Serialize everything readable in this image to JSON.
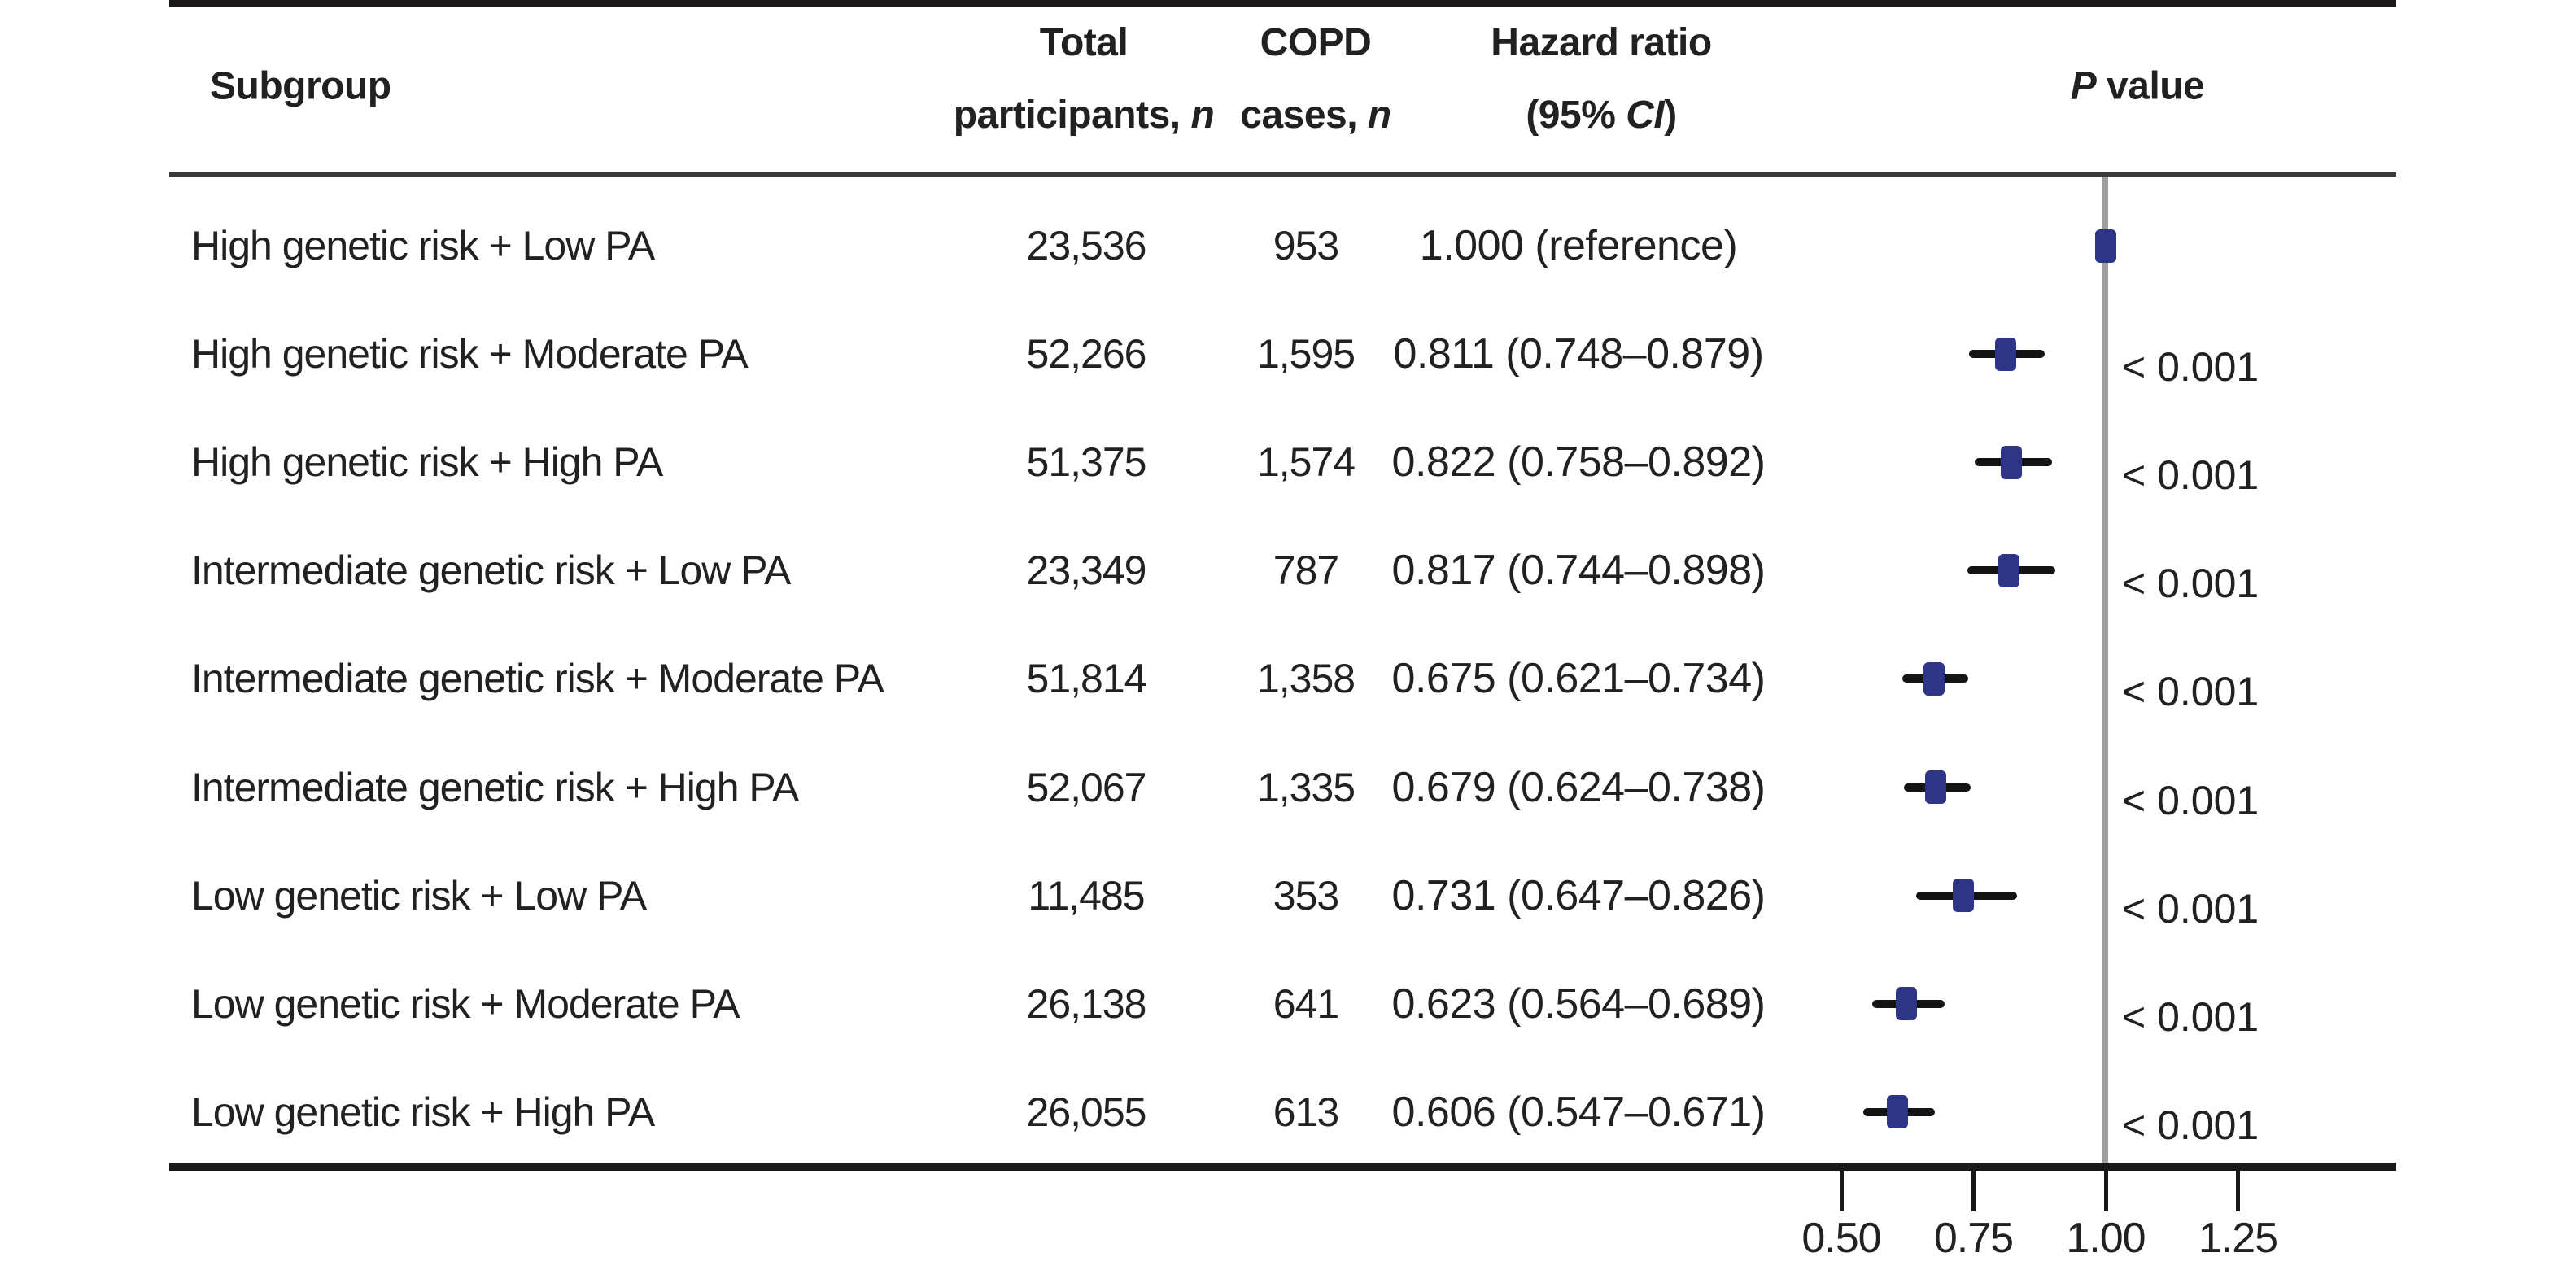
{
  "chart_data": {
    "type": "forest",
    "header": {
      "subgroup": "Subgroup",
      "total_line1": "Total",
      "total_line2_text": "participants, ",
      "total_line2_italic": "n",
      "copd_line1": "COPD",
      "copd_line2_text": "cases, ",
      "copd_line2_italic": "n",
      "hr_line1": "Hazard ratio",
      "hr_line2_pre": "(95% ",
      "hr_line2_italic": "CI",
      "hr_line2_post": ")",
      "p_italic": "P",
      "p_rest": " value"
    },
    "rows": [
      {
        "subgroup": "High genetic risk + Low PA",
        "total_participants": "23,536",
        "copd_cases": "953",
        "hr_text": "1.000 (reference)",
        "hr": 1.0,
        "ci_low": null,
        "ci_high": null,
        "p_value": ""
      },
      {
        "subgroup": "High genetic risk + Moderate PA",
        "total_participants": "52,266",
        "copd_cases": "1,595",
        "hr_text": "0.811 (0.748–0.879)",
        "hr": 0.811,
        "ci_low": 0.748,
        "ci_high": 0.879,
        "p_value": "< 0.001"
      },
      {
        "subgroup": "High genetic risk + High PA",
        "total_participants": "51,375",
        "copd_cases": "1,574",
        "hr_text": "0.822 (0.758–0.892)",
        "hr": 0.822,
        "ci_low": 0.758,
        "ci_high": 0.892,
        "p_value": "< 0.001"
      },
      {
        "subgroup": "Intermediate genetic risk + Low PA",
        "total_participants": "23,349",
        "copd_cases": "787",
        "hr_text": "0.817 (0.744–0.898)",
        "hr": 0.817,
        "ci_low": 0.744,
        "ci_high": 0.898,
        "p_value": "< 0.001"
      },
      {
        "subgroup": "Intermediate genetic risk + Moderate PA",
        "total_participants": "51,814",
        "copd_cases": "1,358",
        "hr_text": "0.675 (0.621–0.734)",
        "hr": 0.675,
        "ci_low": 0.621,
        "ci_high": 0.734,
        "p_value": "< 0.001"
      },
      {
        "subgroup": "Intermediate genetic risk + High PA",
        "total_participants": "52,067",
        "copd_cases": "1,335",
        "hr_text": "0.679 (0.624–0.738)",
        "hr": 0.679,
        "ci_low": 0.624,
        "ci_high": 0.738,
        "p_value": "< 0.001"
      },
      {
        "subgroup": "Low genetic risk + Low PA",
        "total_participants": "11,485",
        "copd_cases": "353",
        "hr_text": "0.731 (0.647–0.826)",
        "hr": 0.731,
        "ci_low": 0.647,
        "ci_high": 0.826,
        "p_value": "< 0.001"
      },
      {
        "subgroup": "Low genetic risk + Moderate PA",
        "total_participants": "26,138",
        "copd_cases": "641",
        "hr_text": "0.623 (0.564–0.689)",
        "hr": 0.623,
        "ci_low": 0.564,
        "ci_high": 0.689,
        "p_value": "< 0.001"
      },
      {
        "subgroup": "Low genetic risk + High PA",
        "total_participants": "26,055",
        "copd_cases": "613",
        "hr_text": "0.606 (0.547–0.671)",
        "hr": 0.606,
        "ci_low": 0.547,
        "ci_high": 0.671,
        "p_value": "< 0.001"
      }
    ],
    "x_axis": {
      "tick_labels": [
        "0.50",
        "0.75",
        "1.00",
        "1.25"
      ],
      "tick_values": [
        0.5,
        0.75,
        1.0,
        1.25
      ],
      "reference_line_value": 1.0
    },
    "colors": {
      "marker": "#2e3586",
      "ci_line": "#141414",
      "reference_line": "#9e9e9e",
      "text": "#222021",
      "rule": "#1a1718"
    }
  }
}
